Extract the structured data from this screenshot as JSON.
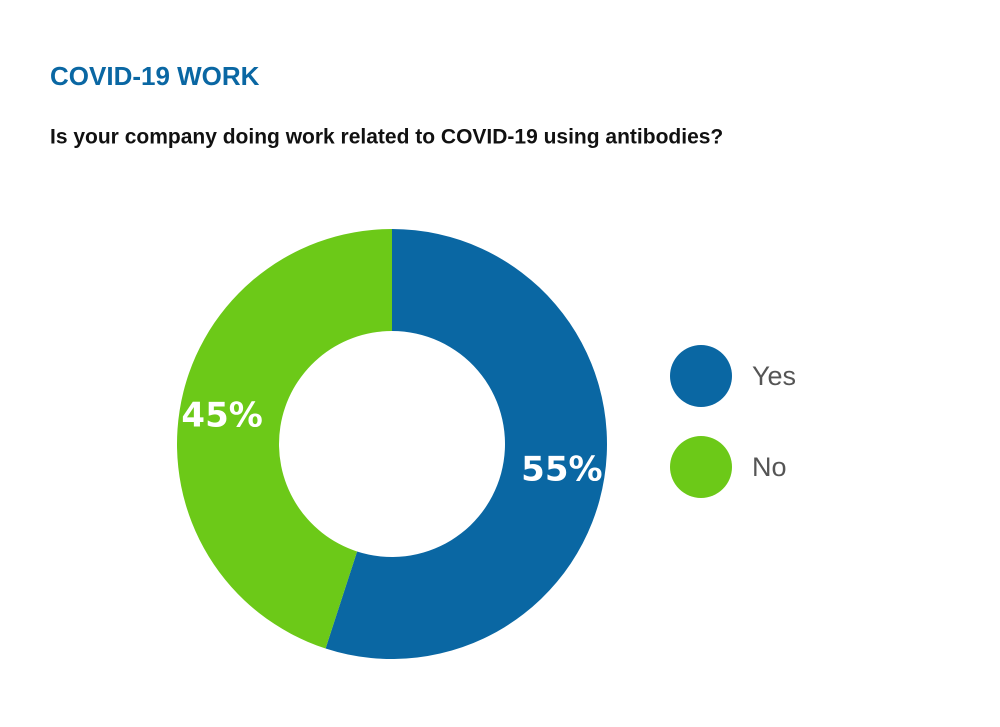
{
  "chart_data": {
    "type": "pie",
    "donut": true,
    "title": "COVID-19 WORK",
    "subtitle": "Is your company doing work related to COVID-19 using antibodies?",
    "categories": [
      "Yes",
      "No"
    ],
    "values": [
      55,
      45
    ],
    "value_labels": [
      "55%",
      "45%"
    ],
    "colors": [
      "#0a67a3",
      "#6cc918"
    ]
  }
}
